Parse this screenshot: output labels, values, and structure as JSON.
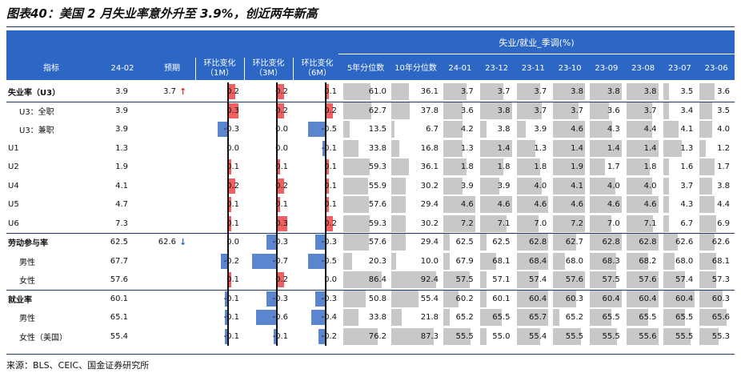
{
  "title": "图表40：美国 2 月失业率意外升至 3.9%，创近两年新高",
  "source": "来源：BLS、CEIC、国金证券研究所",
  "colors": {
    "header": "#2d67c5",
    "positive_bar": "#f06060",
    "negative_bar": "#5b86cf",
    "grey_bar": "#c8c8c8",
    "up_arrow": "#e23030",
    "down_arrow": "#2b63c4"
  },
  "chart_data": {
    "type": "table",
    "banner": "失业/就业_季调(%)",
    "headers": [
      "指标",
      "24-02",
      "预期",
      "环比变化（1M）",
      "环比变化（3M）",
      "环比变化（6M）",
      "5年分位数",
      "10年分位数",
      "24-01",
      "23-12",
      "23-11",
      "23-10",
      "23-09",
      "23-08",
      "23-07",
      "23-06"
    ],
    "rows": [
      {
        "label": "失业率（U3）",
        "bold": true,
        "indent": false,
        "v2402": "3.9",
        "expected": "3.7",
        "arrow": "up",
        "m1": 0.2,
        "m3": 0.2,
        "m6": 0.1,
        "m1_text": "0.2",
        "m3_text": "0.2",
        "m6_text": "0.1",
        "p5": 61.0,
        "p10": 36.1,
        "p5_text": "61.0",
        "p10_text": "36.1",
        "hist": [
          "3.7",
          "3.7",
          "3.7",
          "3.8",
          "3.8",
          "3.8",
          "3.5",
          "3.6"
        ],
        "hist_v": [
          3.7,
          3.7,
          3.7,
          3.8,
          3.8,
          3.8,
          3.5,
          3.6
        ]
      },
      {
        "label": "U3：全职",
        "bold": false,
        "indent": true,
        "v2402": "3.9",
        "expected": "",
        "arrow": "",
        "m1": 0.3,
        "m3": 0.2,
        "m6": 0.2,
        "m1_text": "0.3",
        "m3_text": "0.2",
        "m6_text": "0.2",
        "p5": 62.7,
        "p10": 37.8,
        "p5_text": "62.7",
        "p10_text": "37.8",
        "hist": [
          "3.6",
          "3.8",
          "3.7",
          "3.7",
          "3.6",
          "3.7",
          "3.4",
          "3.5"
        ],
        "hist_v": [
          3.6,
          3.8,
          3.7,
          3.7,
          3.6,
          3.7,
          3.4,
          3.5
        ]
      },
      {
        "label": "U3：兼职",
        "bold": false,
        "indent": true,
        "v2402": "3.9",
        "expected": "",
        "arrow": "",
        "m1": -0.3,
        "m3": 0.0,
        "m6": -0.5,
        "m1_text": "-0.3",
        "m3_text": "0.0",
        "m6_text": "-0.5",
        "p5": 13.5,
        "p10": 6.7,
        "p5_text": "13.5",
        "p10_text": "6.7",
        "hist": [
          "4.2",
          "3.8",
          "3.9",
          "4.6",
          "4.3",
          "4.4",
          "4.1",
          "4.0"
        ],
        "hist_v": [
          4.2,
          3.8,
          3.9,
          4.6,
          4.3,
          4.4,
          4.1,
          4.0
        ]
      },
      {
        "label": "U1",
        "bold": false,
        "indent": false,
        "v2402": "1.3",
        "expected": "",
        "arrow": "",
        "m1": 0.0,
        "m3": 0.0,
        "m6": -0.1,
        "m1_text": "0.0",
        "m3_text": "0.0",
        "m6_text": "-0.1",
        "p5": 33.8,
        "p10": 16.8,
        "p5_text": "33.8",
        "p10_text": "16.8",
        "hist": [
          "1.3",
          "1.4",
          "1.3",
          "1.4",
          "1.4",
          "1.4",
          "1.3",
          "1.2"
        ],
        "hist_v": [
          1.3,
          1.4,
          1.3,
          1.4,
          1.4,
          1.4,
          1.3,
          1.2
        ]
      },
      {
        "label": "U2",
        "bold": false,
        "indent": false,
        "v2402": "1.9",
        "expected": "",
        "arrow": "",
        "m1": 0.1,
        "m3": 0.1,
        "m6": 0.1,
        "m1_text": "0.1",
        "m3_text": "0.1",
        "m6_text": "0.1",
        "p5": 59.3,
        "p10": 36.1,
        "p5_text": "59.3",
        "p10_text": "36.1",
        "hist": [
          "1.8",
          "1.8",
          "1.8",
          "1.9",
          "1.7",
          "1.8",
          "1.6",
          "1.7"
        ],
        "hist_v": [
          1.8,
          1.8,
          1.8,
          1.9,
          1.7,
          1.8,
          1.6,
          1.7
        ]
      },
      {
        "label": "U4",
        "bold": false,
        "indent": false,
        "v2402": "4.1",
        "expected": "",
        "arrow": "",
        "m1": 0.2,
        "m3": 0.2,
        "m6": 0.1,
        "m1_text": "0.2",
        "m3_text": "0.2",
        "m6_text": "0.1",
        "p5": 55.9,
        "p10": 30.2,
        "p5_text": "55.9",
        "p10_text": "30.2",
        "hist": [
          "3.9",
          "3.9",
          "4.0",
          "4.1",
          "4.0",
          "4.0",
          "3.7",
          "3.8"
        ],
        "hist_v": [
          3.9,
          3.9,
          4.0,
          4.1,
          4.0,
          4.0,
          3.7,
          3.8
        ]
      },
      {
        "label": "U5",
        "bold": false,
        "indent": false,
        "v2402": "4.7",
        "expected": "",
        "arrow": "",
        "m1": 0.1,
        "m3": 0.1,
        "m6": 0.1,
        "m1_text": "0.1",
        "m3_text": "0.1",
        "m6_text": "0.1",
        "p5": 57.6,
        "p10": 29.4,
        "p5_text": "57.6",
        "p10_text": "29.4",
        "hist": [
          "4.6",
          "4.6",
          "4.6",
          "4.6",
          "4.6",
          "4.6",
          "4.3",
          "4.4"
        ],
        "hist_v": [
          4.6,
          4.6,
          4.6,
          4.6,
          4.6,
          4.6,
          4.3,
          4.4
        ]
      },
      {
        "label": "U6",
        "bold": false,
        "indent": false,
        "v2402": "7.3",
        "expected": "",
        "arrow": "",
        "m1": 0.1,
        "m3": 0.3,
        "m6": 0.2,
        "m1_text": "0.1",
        "m3_text": "0.3",
        "m6_text": "0.2",
        "p5": 59.3,
        "p10": 30.2,
        "p5_text": "59.3",
        "p10_text": "30.2",
        "hist": [
          "7.2",
          "7.1",
          "7.0",
          "7.2",
          "7.0",
          "7.1",
          "6.7",
          "6.9"
        ],
        "hist_v": [
          7.2,
          7.1,
          7.0,
          7.2,
          7.0,
          7.1,
          6.7,
          6.9
        ]
      },
      {
        "label": "劳动参与率",
        "bold": true,
        "indent": false,
        "v2402": "62.5",
        "expected": "62.6",
        "arrow": "down",
        "m1": 0.0,
        "m3": -0.3,
        "m6": -0.3,
        "m1_text": "0.0",
        "m3_text": "-0.3",
        "m6_text": "-0.3",
        "p5": 57.6,
        "p10": 29.4,
        "p5_text": "57.6",
        "p10_text": "29.4",
        "hist": [
          "62.5",
          "62.5",
          "62.8",
          "62.7",
          "62.8",
          "62.8",
          "62.6",
          "62.6"
        ],
        "hist_v": [
          62.5,
          62.5,
          62.8,
          62.7,
          62.8,
          62.8,
          62.6,
          62.6
        ]
      },
      {
        "label": "男性",
        "bold": false,
        "indent": true,
        "v2402": "67.7",
        "expected": "",
        "arrow": "",
        "m1": -0.2,
        "m3": -0.7,
        "m6": -0.5,
        "m1_text": "-0.2",
        "m3_text": "-0.7",
        "m6_text": "-0.5",
        "p5": 20.3,
        "p10": 10.0,
        "p5_text": "20.3",
        "p10_text": "10.0",
        "hist": [
          "67.9",
          "68.1",
          "68.4",
          "68.0",
          "68.3",
          "68.2",
          "68.0",
          "68.1"
        ],
        "hist_v": [
          67.9,
          68.1,
          68.4,
          68.0,
          68.3,
          68.2,
          68.0,
          68.1
        ]
      },
      {
        "label": "女性",
        "bold": false,
        "indent": true,
        "v2402": "57.6",
        "expected": "",
        "arrow": "",
        "m1": 0.1,
        "m3": 0.2,
        "m6": 0.0,
        "m1_text": "0.1",
        "m3_text": "0.2",
        "m6_text": "0.0",
        "p5": 86.4,
        "p10": 92.4,
        "p5_text": "86.4",
        "p10_text": "92.4",
        "hist": [
          "57.5",
          "57.1",
          "57.4",
          "57.6",
          "57.5",
          "57.6",
          "57.4",
          "57.3"
        ],
        "hist_v": [
          57.5,
          57.1,
          57.4,
          57.6,
          57.5,
          57.6,
          57.4,
          57.3
        ]
      },
      {
        "label": "就业率",
        "bold": true,
        "indent": false,
        "v2402": "60.1",
        "expected": "",
        "arrow": "",
        "m1": -0.1,
        "m3": -0.3,
        "m6": -0.3,
        "m1_text": "-0.1",
        "m3_text": "-0.3",
        "m6_text": "-0.3",
        "p5": 50.8,
        "p10": 55.4,
        "p5_text": "50.8",
        "p10_text": "55.4",
        "hist": [
          "60.2",
          "60.1",
          "60.4",
          "60.3",
          "60.4",
          "60.4",
          "60.4",
          "60.3"
        ],
        "hist_v": [
          60.2,
          60.1,
          60.4,
          60.3,
          60.4,
          60.4,
          60.4,
          60.3
        ]
      },
      {
        "label": "男性",
        "bold": false,
        "indent": true,
        "v2402": "65.1",
        "expected": "",
        "arrow": "",
        "m1": -0.1,
        "m3": -0.6,
        "m6": -0.4,
        "m1_text": "-0.1",
        "m3_text": "-0.6",
        "m6_text": "-0.4",
        "p5": 33.8,
        "p10": 21.8,
        "p5_text": "33.8",
        "p10_text": "21.8",
        "hist": [
          "65.2",
          "65.5",
          "65.7",
          "65.2",
          "65.5",
          "65.5",
          "65.5",
          "65.6"
        ],
        "hist_v": [
          65.2,
          65.5,
          65.7,
          65.2,
          65.5,
          65.5,
          65.5,
          65.6
        ]
      },
      {
        "label": "女性（美国）",
        "bold": false,
        "indent": true,
        "v2402": "55.4",
        "expected": "",
        "arrow": "",
        "m1": -0.1,
        "m3": -0.1,
        "m6": -0.2,
        "m1_text": "-0.1",
        "m3_text": "-0.1",
        "m6_text": "-0.2",
        "p5": 76.2,
        "p10": 87.3,
        "p5_text": "76.2",
        "p10_text": "87.3",
        "hist": [
          "55.5",
          "55.0",
          "55.4",
          "55.5",
          "55.5",
          "55.6",
          "55.5",
          "55.3"
        ],
        "hist_v": [
          55.5,
          55.0,
          55.4,
          55.5,
          55.5,
          55.6,
          55.5,
          55.3
        ]
      }
    ]
  }
}
